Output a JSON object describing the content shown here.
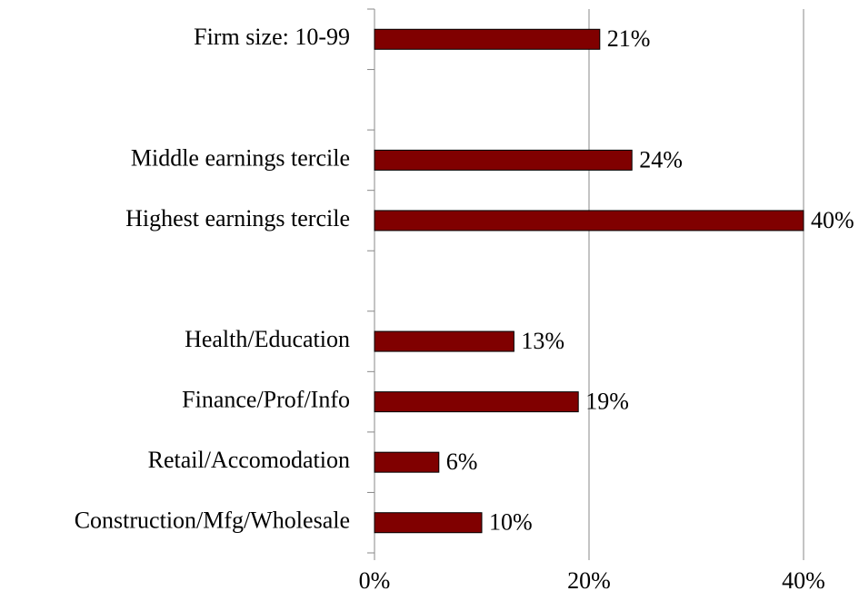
{
  "chart_data": {
    "type": "barh",
    "categories": [
      "Firm size: 10-99",
      null,
      "Middle earnings tercile",
      "Highest earnings tercile",
      null,
      "Health/Education",
      "Finance/Prof/Info",
      "Retail/Accomodation",
      "Construction/Mfg/Wholesale"
    ],
    "values": [
      21,
      null,
      24,
      40,
      null,
      13,
      19,
      6,
      10
    ],
    "value_labels": [
      "21%",
      null,
      "24%",
      "40%",
      null,
      "13%",
      "19%",
      "6%",
      "10%"
    ],
    "color": "#800000",
    "xlim": [
      0,
      40
    ],
    "xticks": [
      {
        "value": 0,
        "label": "0%"
      },
      {
        "value": 20,
        "label": "20%"
      },
      {
        "value": 40,
        "label": "40%"
      }
    ],
    "grid": true
  }
}
